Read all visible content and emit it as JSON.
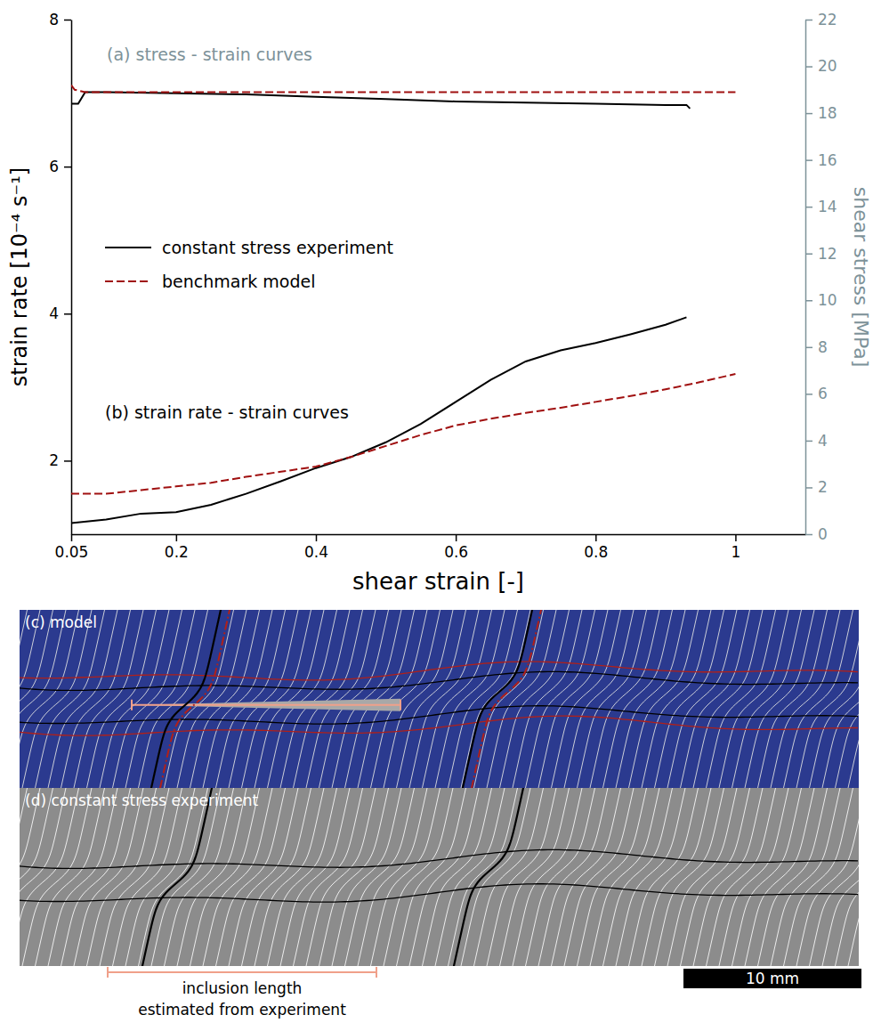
{
  "chart_data": {
    "type": "line",
    "annotations": [
      "(a) stress - strain curves",
      "(b) strain rate - strain curves"
    ],
    "x_label": "shear strain [-]",
    "y_label": "strain rate [10⁻⁴ s⁻¹]",
    "y2_label": "shear stress [MPa]",
    "xlim": [
      0.05,
      1.1
    ],
    "xticks": [
      0.05,
      0.2,
      0.4,
      0.6,
      0.8,
      1
    ],
    "ylim": [
      1,
      8
    ],
    "yticks": [
      2,
      4,
      6,
      8
    ],
    "y2lim": [
      0,
      22
    ],
    "y2ticks": [
      0,
      2,
      4,
      6,
      8,
      10,
      12,
      14,
      16,
      18,
      20,
      22
    ],
    "legend": "left",
    "series": [
      {
        "name": "constant stress experiment",
        "color": "#000000",
        "line_style": "solid",
        "axis": "y2",
        "x": [
          0.05,
          0.06,
          0.07,
          0.1,
          0.2,
          0.3,
          0.4,
          0.5,
          0.6,
          0.7,
          0.8,
          0.9,
          0.93,
          0.935
        ],
        "values": [
          18.4,
          18.4,
          18.9,
          18.9,
          18.85,
          18.8,
          18.7,
          18.6,
          18.5,
          18.45,
          18.4,
          18.35,
          18.35,
          18.2
        ]
      },
      {
        "name": "benchmark model",
        "color": "#a01010",
        "line_style": "dashed",
        "axis": "y2",
        "x": [
          0.05,
          0.055,
          0.07,
          0.1,
          1.0
        ],
        "values": [
          19.2,
          19.0,
          18.9,
          18.9,
          18.9
        ]
      },
      {
        "name": "constant stress experiment",
        "color": "#000000",
        "line_style": "solid",
        "x": [
          0.05,
          0.1,
          0.15,
          0.2,
          0.25,
          0.3,
          0.35,
          0.4,
          0.45,
          0.5,
          0.55,
          0.6,
          0.65,
          0.7,
          0.75,
          0.8,
          0.85,
          0.9,
          0.93
        ],
        "values": [
          1.15,
          1.2,
          1.28,
          1.3,
          1.4,
          1.55,
          1.72,
          1.9,
          2.05,
          2.25,
          2.5,
          2.8,
          3.1,
          3.35,
          3.5,
          3.6,
          3.72,
          3.85,
          3.95
        ]
      },
      {
        "name": "benchmark model",
        "color": "#a01010",
        "line_style": "dashed",
        "x": [
          0.05,
          0.1,
          0.15,
          0.2,
          0.25,
          0.3,
          0.35,
          0.4,
          0.45,
          0.5,
          0.55,
          0.6,
          0.65,
          0.7,
          0.75,
          0.8,
          0.85,
          0.9,
          0.95,
          1.0
        ],
        "values": [
          1.55,
          1.55,
          1.6,
          1.65,
          1.7,
          1.78,
          1.85,
          1.92,
          2.05,
          2.2,
          2.35,
          2.48,
          2.57,
          2.65,
          2.72,
          2.8,
          2.88,
          2.97,
          3.07,
          3.18
        ]
      }
    ]
  },
  "image_panels": [
    {
      "label": "(c) model"
    },
    {
      "label": "(d) constant stress experiment"
    }
  ],
  "inclusion_label": [
    "inclusion length",
    "estimated from experiment"
  ],
  "scale_bar_label": "10 mm"
}
